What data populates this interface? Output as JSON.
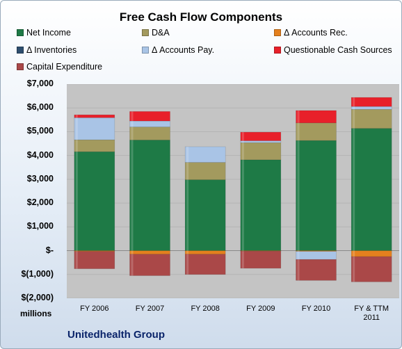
{
  "chart_data": {
    "type": "stacked-bar",
    "title": "Free Cash Flow Components",
    "categories": [
      "FY 2006",
      "FY 2007",
      "FY 2008",
      "FY 2009",
      "FY 2010",
      "FY & TTM 2011"
    ],
    "ylim": [
      -2000,
      7000
    ],
    "yticks": [
      7000,
      6000,
      5000,
      4000,
      3000,
      2000,
      1000,
      0,
      -1000,
      -2000
    ],
    "ytick_labels": [
      "$7,000",
      "$6,000",
      "$5,000",
      "$4,000",
      "$3,000",
      "$2,000",
      "$1,000",
      "$-",
      "$(1,000)",
      "$(2,000)"
    ],
    "units_label": "millions",
    "legend_position": "top",
    "series": [
      {
        "name": "Net Income",
        "color": "#1e7a46",
        "values": [
          4160,
          4650,
          2980,
          3820,
          4630,
          5140
        ]
      },
      {
        "name": "D&A",
        "color": "#a39a5e",
        "values": [
          500,
          550,
          730,
          720,
          740,
          800
        ]
      },
      {
        "name": "Δ Accounts Rec.",
        "color": "#e4801e",
        "values": [
          -30,
          -150,
          -150,
          -20,
          -30,
          -250
        ]
      },
      {
        "name": "Δ Inventories",
        "color": "#2e4e6e",
        "values": [
          0,
          0,
          0,
          0,
          0,
          0
        ]
      },
      {
        "name": "Δ Accounts Pay.",
        "color": "#a9c4e6",
        "values": [
          930,
          250,
          660,
          80,
          -340,
          120
        ]
      },
      {
        "name": "Questionable Cash Sources",
        "color": "#e8202a",
        "values": [
          120,
          400,
          0,
          360,
          520,
          380
        ]
      },
      {
        "name": "Capital Expenditure",
        "color": "#aa4848",
        "values": [
          -730,
          -900,
          -850,
          -720,
          -880,
          -1060
        ]
      }
    ]
  },
  "company": "Unitedhealth Group"
}
